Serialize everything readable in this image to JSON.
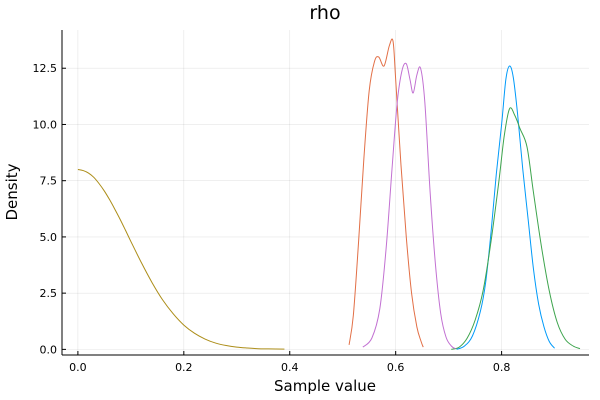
{
  "chart_data": {
    "type": "line",
    "title": "rho",
    "xlabel": "Sample value",
    "ylabel": "Density",
    "xlim": [
      -0.03,
      0.965
    ],
    "ylim": [
      -0.25,
      14.2
    ],
    "x_ticks": [
      0.0,
      0.2,
      0.4,
      0.6,
      0.8
    ],
    "x_tick_labels": [
      "0.0",
      "0.2",
      "0.4",
      "0.6",
      "0.8"
    ],
    "y_ticks": [
      0.0,
      2.5,
      5.0,
      7.5,
      10.0,
      12.5
    ],
    "y_tick_labels": [
      "0.0",
      "2.5",
      "5.0",
      "7.5",
      "10.0",
      "12.5"
    ],
    "grid": true,
    "legend": "none",
    "series": [
      {
        "color": "#009af9",
        "points": [
          [
            0.715,
            0.0
          ],
          [
            0.73,
            0.15
          ],
          [
            0.745,
            0.6
          ],
          [
            0.76,
            1.7
          ],
          [
            0.77,
            3.0
          ],
          [
            0.78,
            5.2
          ],
          [
            0.79,
            7.8
          ],
          [
            0.8,
            10.0
          ],
          [
            0.808,
            12.0
          ],
          [
            0.815,
            12.6
          ],
          [
            0.822,
            12.1
          ],
          [
            0.83,
            10.5
          ],
          [
            0.84,
            8.0
          ],
          [
            0.85,
            5.8
          ],
          [
            0.86,
            3.6
          ],
          [
            0.87,
            2.0
          ],
          [
            0.88,
            1.0
          ],
          [
            0.89,
            0.35
          ],
          [
            0.9,
            0.05
          ]
        ]
      },
      {
        "color": "#e26f46",
        "points": [
          [
            0.512,
            0.2
          ],
          [
            0.52,
            1.5
          ],
          [
            0.53,
            4.8
          ],
          [
            0.54,
            8.5
          ],
          [
            0.55,
            11.5
          ],
          [
            0.56,
            12.8
          ],
          [
            0.568,
            13.0
          ],
          [
            0.578,
            12.6
          ],
          [
            0.588,
            13.5
          ],
          [
            0.595,
            13.7
          ],
          [
            0.6,
            12.0
          ],
          [
            0.61,
            8.2
          ],
          [
            0.62,
            5.0
          ],
          [
            0.63,
            2.5
          ],
          [
            0.64,
            1.0
          ],
          [
            0.648,
            0.35
          ],
          [
            0.652,
            0.1
          ]
        ]
      },
      {
        "color": "#3da44d",
        "points": [
          [
            0.705,
            0.0
          ],
          [
            0.72,
            0.1
          ],
          [
            0.735,
            0.5
          ],
          [
            0.75,
            1.3
          ],
          [
            0.765,
            2.6
          ],
          [
            0.78,
            4.8
          ],
          [
            0.795,
            7.5
          ],
          [
            0.805,
            9.5
          ],
          [
            0.815,
            10.7
          ],
          [
            0.825,
            10.4
          ],
          [
            0.835,
            9.8
          ],
          [
            0.848,
            9.0
          ],
          [
            0.86,
            7.0
          ],
          [
            0.875,
            4.6
          ],
          [
            0.89,
            2.6
          ],
          [
            0.905,
            1.2
          ],
          [
            0.92,
            0.45
          ],
          [
            0.935,
            0.15
          ],
          [
            0.948,
            0.03
          ]
        ]
      },
      {
        "color": "#c271d2",
        "points": [
          [
            0.538,
            0.1
          ],
          [
            0.555,
            0.5
          ],
          [
            0.57,
            1.8
          ],
          [
            0.582,
            4.5
          ],
          [
            0.593,
            8.0
          ],
          [
            0.603,
            11.0
          ],
          [
            0.612,
            12.4
          ],
          [
            0.62,
            12.7
          ],
          [
            0.627,
            12.0
          ],
          [
            0.633,
            11.4
          ],
          [
            0.64,
            12.2
          ],
          [
            0.647,
            12.5
          ],
          [
            0.655,
            11.0
          ],
          [
            0.665,
            7.0
          ],
          [
            0.675,
            3.8
          ],
          [
            0.685,
            1.6
          ],
          [
            0.695,
            0.55
          ],
          [
            0.705,
            0.15
          ],
          [
            0.713,
            0.03
          ]
        ]
      },
      {
        "color": "#ac8d18",
        "points": [
          [
            0.0,
            8.0
          ],
          [
            0.01,
            7.95
          ],
          [
            0.02,
            7.84
          ],
          [
            0.03,
            7.65
          ],
          [
            0.04,
            7.37
          ],
          [
            0.05,
            7.04
          ],
          [
            0.06,
            6.65
          ],
          [
            0.07,
            6.22
          ],
          [
            0.08,
            5.77
          ],
          [
            0.09,
            5.29
          ],
          [
            0.1,
            4.8
          ],
          [
            0.12,
            3.85
          ],
          [
            0.14,
            2.97
          ],
          [
            0.16,
            2.2
          ],
          [
            0.18,
            1.58
          ],
          [
            0.2,
            1.08
          ],
          [
            0.22,
            0.72
          ],
          [
            0.24,
            0.46
          ],
          [
            0.26,
            0.28
          ],
          [
            0.28,
            0.17
          ],
          [
            0.3,
            0.1
          ],
          [
            0.32,
            0.06
          ],
          [
            0.34,
            0.03
          ],
          [
            0.36,
            0.02
          ],
          [
            0.39,
            0.01
          ]
        ]
      }
    ]
  }
}
